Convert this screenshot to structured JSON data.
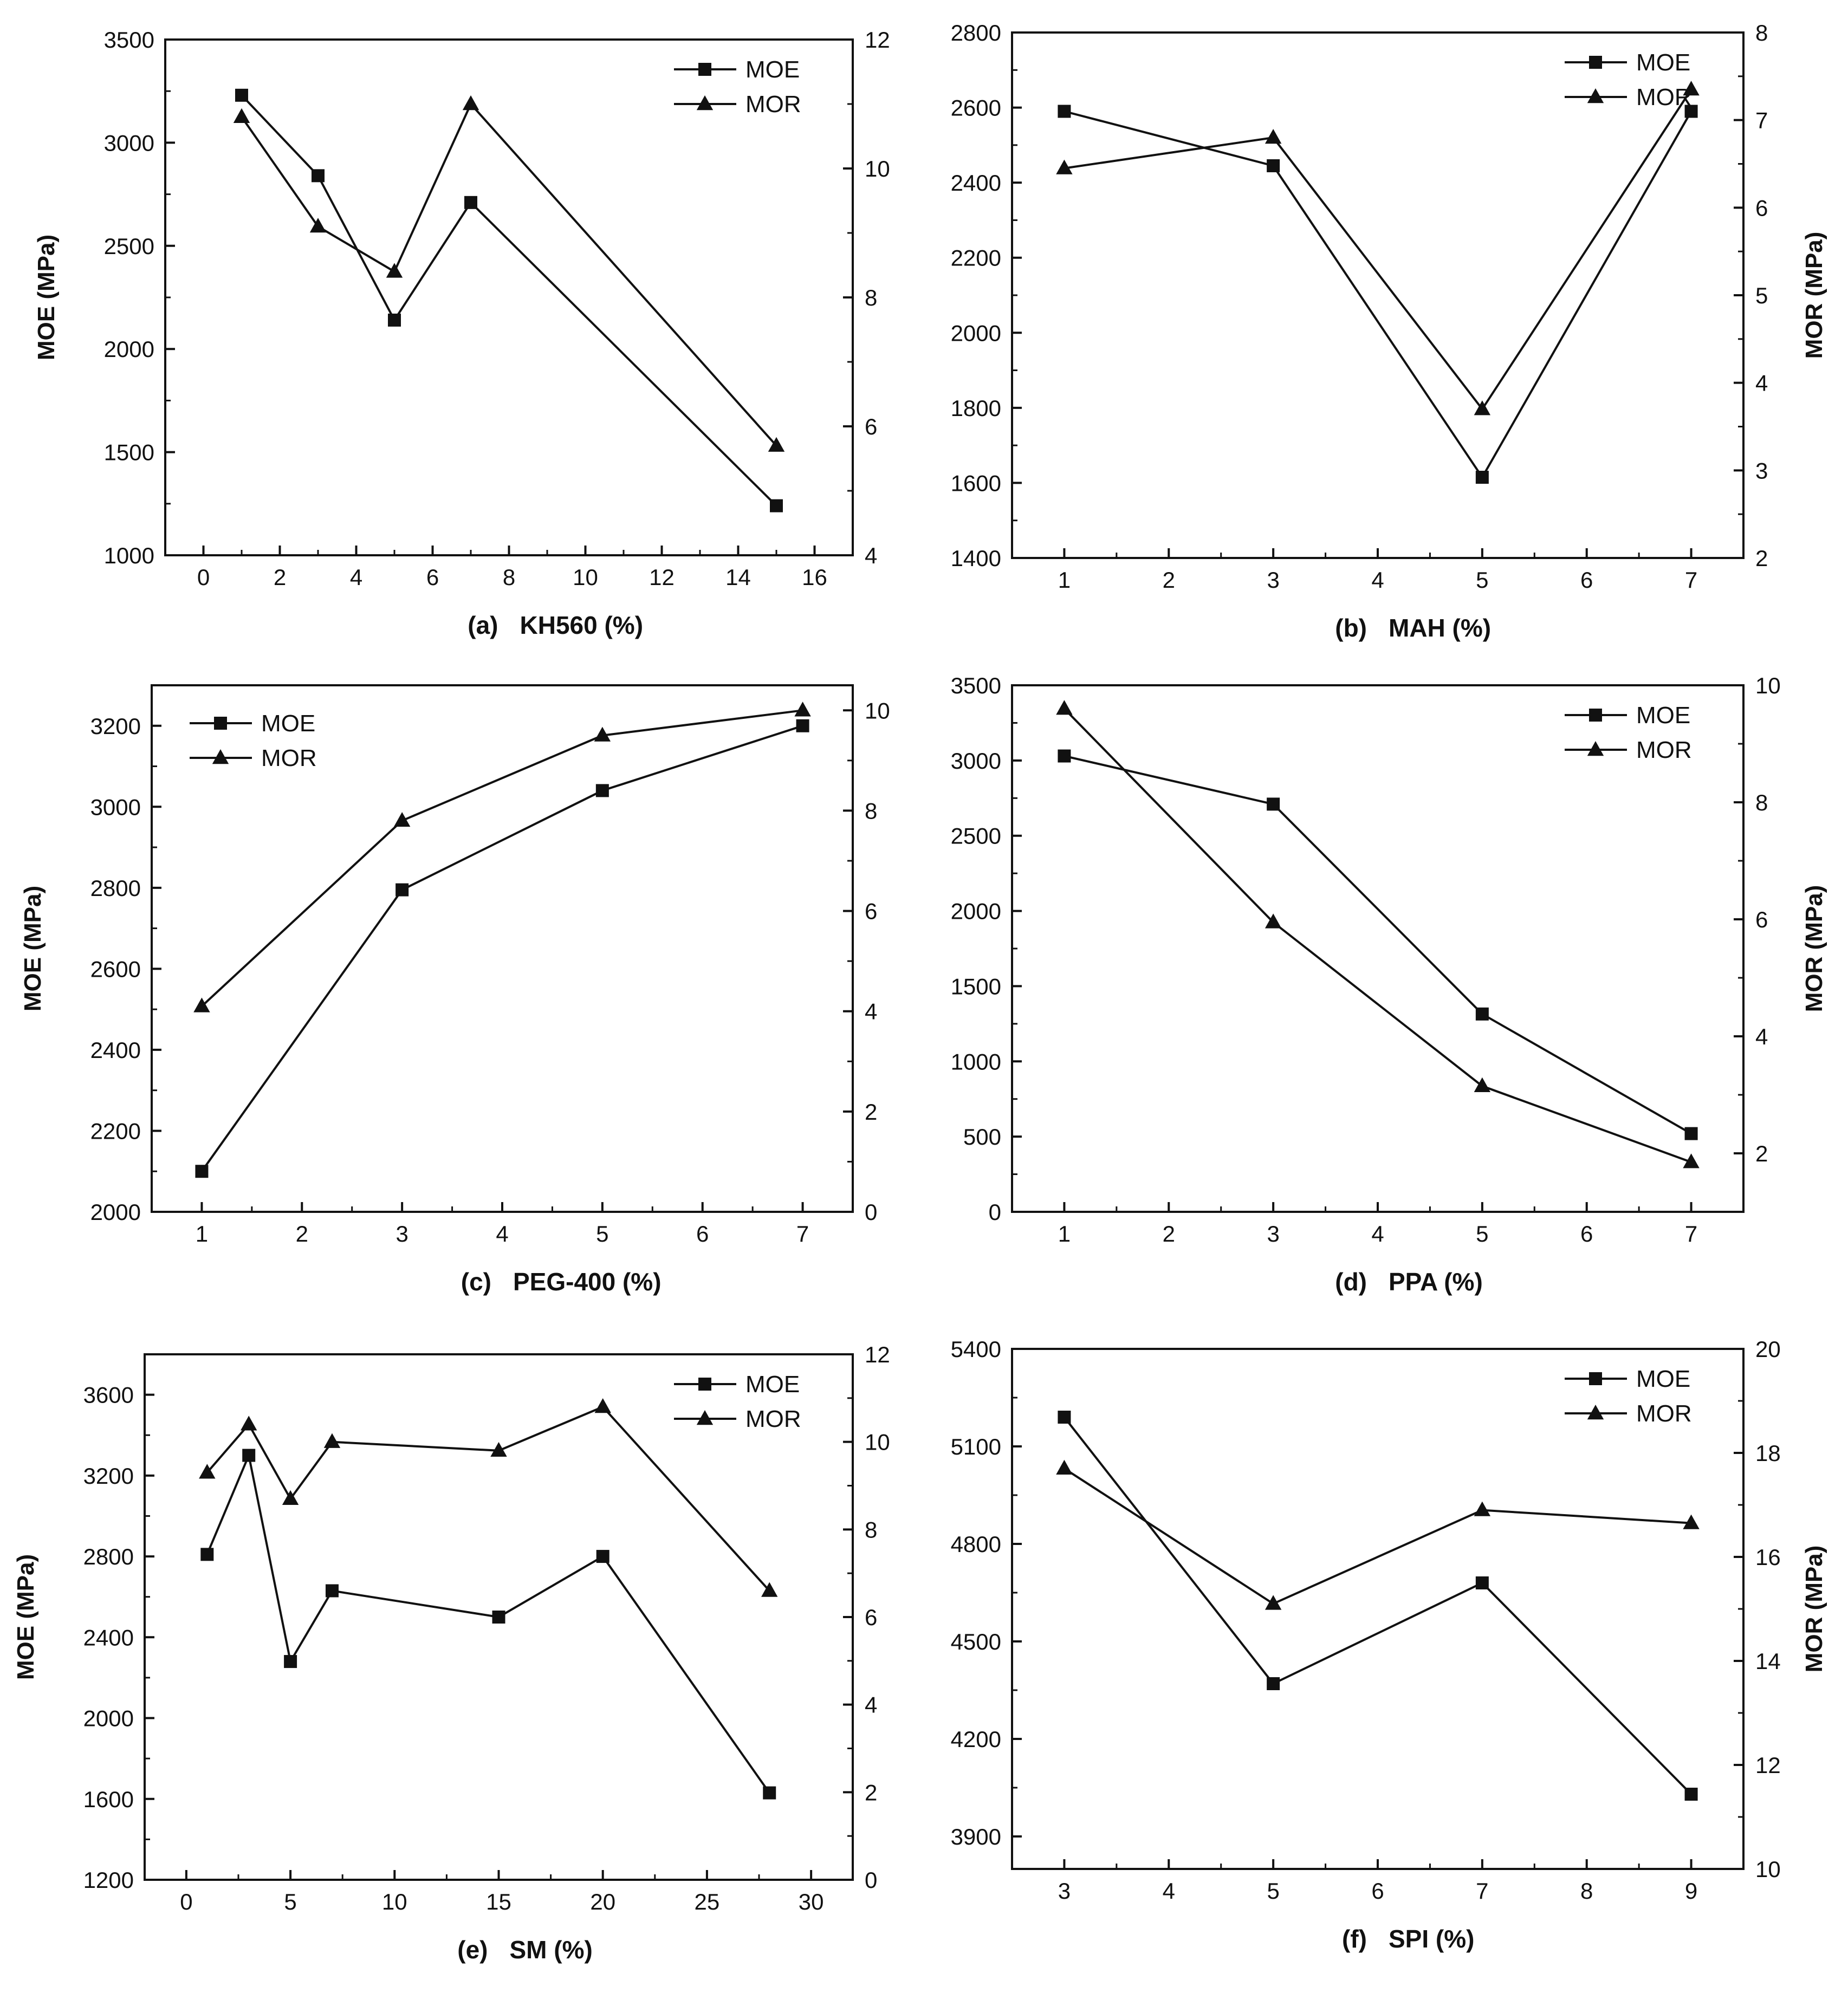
{
  "chart_data": [
    {
      "panel": "(a)",
      "type": "line",
      "xlabel": "KH560 (%)",
      "ylabel": "MOE (MPa)",
      "y2label": "",
      "xlim": [
        -1,
        17
      ],
      "xticks": [
        0,
        2,
        4,
        6,
        8,
        10,
        12,
        14,
        16
      ],
      "ylim": [
        1000,
        3500
      ],
      "yticks": [
        1000,
        1500,
        2000,
        2500,
        3000,
        3500
      ],
      "y2lim": [
        4,
        12
      ],
      "y2ticks": [
        4,
        6,
        8,
        10,
        12
      ],
      "legend": "top-right",
      "series": [
        {
          "name": "MOE",
          "axis": "left",
          "marker": "square",
          "x": [
            1,
            3,
            5,
            7,
            15
          ],
          "y": [
            3230,
            2840,
            2140,
            2710,
            1240
          ]
        },
        {
          "name": "MOR",
          "axis": "right",
          "marker": "triangle",
          "x": [
            1,
            3,
            5,
            7,
            15
          ],
          "y": [
            10.8,
            9.1,
            8.4,
            11.0,
            5.7
          ]
        }
      ]
    },
    {
      "panel": "(b)",
      "type": "line",
      "xlabel": "MAH (%)",
      "ylabel": "",
      "y2label": "MOR (MPa)",
      "xlim": [
        0.5,
        7.5
      ],
      "xticks": [
        1,
        2,
        3,
        4,
        5,
        6,
        7
      ],
      "ylim": [
        1400,
        2800
      ],
      "yticks": [
        1400,
        1600,
        1800,
        2000,
        2200,
        2400,
        2600,
        2800
      ],
      "y2lim": [
        2,
        8
      ],
      "y2ticks": [
        2,
        3,
        4,
        5,
        6,
        7,
        8
      ],
      "legend": "top-right",
      "series": [
        {
          "name": "MOE",
          "axis": "left",
          "marker": "square",
          "x": [
            1,
            3,
            5,
            7
          ],
          "y": [
            2590,
            2445,
            1615,
            2590
          ]
        },
        {
          "name": "MOR",
          "axis": "right",
          "marker": "triangle",
          "x": [
            1,
            3,
            5,
            7
          ],
          "y": [
            6.45,
            6.8,
            3.7,
            7.35
          ]
        }
      ]
    },
    {
      "panel": "(c)",
      "type": "line",
      "xlabel": "PEG-400 (%)",
      "ylabel": "MOE (MPa)",
      "y2label": "",
      "xlim": [
        0.5,
        7.5
      ],
      "xticks": [
        1,
        2,
        3,
        4,
        5,
        6,
        7
      ],
      "ylim": [
        2000,
        3300
      ],
      "yticks": [
        2000,
        2200,
        2400,
        2600,
        2800,
        3000,
        3200
      ],
      "y2lim": [
        0,
        10.5
      ],
      "y2ticks": [
        0,
        2,
        4,
        6,
        8,
        10
      ],
      "legend": "top-left",
      "series": [
        {
          "name": "MOE",
          "axis": "left",
          "marker": "square",
          "x": [
            1,
            3,
            5,
            7
          ],
          "y": [
            2100,
            2795,
            3040,
            3200
          ]
        },
        {
          "name": "MOR",
          "axis": "right",
          "marker": "triangle",
          "x": [
            1,
            3,
            5,
            7
          ],
          "y": [
            4.1,
            7.8,
            9.5,
            10.0
          ]
        }
      ]
    },
    {
      "panel": "(d)",
      "type": "line",
      "xlabel": "PPA (%)",
      "ylabel": "",
      "y2label": "MOR (MPa)",
      "xlim": [
        0.5,
        7.5
      ],
      "xticks": [
        1,
        2,
        3,
        4,
        5,
        6,
        7
      ],
      "ylim": [
        0,
        3500
      ],
      "yticks": [
        0,
        500,
        1000,
        1500,
        2000,
        2500,
        3000,
        3500
      ],
      "y2lim": [
        1,
        10
      ],
      "y2ticks": [
        2,
        4,
        6,
        8,
        10
      ],
      "legend": "top-right",
      "series": [
        {
          "name": "MOE",
          "axis": "left",
          "marker": "square",
          "x": [
            1,
            3,
            5,
            7
          ],
          "y": [
            3030,
            2710,
            1315,
            520
          ]
        },
        {
          "name": "MOR",
          "axis": "right",
          "marker": "triangle",
          "x": [
            1,
            3,
            5,
            7
          ],
          "y": [
            9.6,
            5.95,
            3.15,
            1.85
          ]
        }
      ]
    },
    {
      "panel": "(e)",
      "type": "line",
      "xlabel": "SM (%)",
      "ylabel": "MOE (MPa)",
      "y2label": "",
      "xlim": [
        -2,
        32
      ],
      "xticks": [
        0,
        5,
        10,
        15,
        20,
        25,
        30
      ],
      "ylim": [
        1200,
        3800
      ],
      "yticks": [
        1200,
        1600,
        2000,
        2400,
        2800,
        3200,
        3600
      ],
      "y2lim": [
        0,
        12
      ],
      "y2ticks": [
        0,
        2,
        4,
        6,
        8,
        10,
        12
      ],
      "legend": "top-right",
      "series": [
        {
          "name": "MOE",
          "axis": "left",
          "marker": "square",
          "x": [
            1,
            3,
            5,
            7,
            15,
            20,
            28
          ],
          "y": [
            2810,
            3300,
            2280,
            2630,
            2500,
            2800,
            1630
          ]
        },
        {
          "name": "MOR",
          "axis": "right",
          "marker": "triangle",
          "x": [
            1,
            3,
            5,
            7,
            15,
            20,
            28
          ],
          "y": [
            9.3,
            10.4,
            8.7,
            10.0,
            9.8,
            10.8,
            6.6
          ]
        }
      ]
    },
    {
      "panel": "(f)",
      "type": "line",
      "xlabel": "SPI (%)",
      "ylabel": "",
      "y2label": "MOR (MPa)",
      "xlim": [
        2.5,
        9.5
      ],
      "xticks": [
        3,
        4,
        5,
        6,
        7,
        8,
        9
      ],
      "ylim": [
        3800,
        5400
      ],
      "yticks": [
        3900,
        4200,
        4500,
        4800,
        5100,
        5400
      ],
      "y2lim": [
        10,
        20
      ],
      "y2ticks": [
        10,
        12,
        14,
        16,
        18,
        20
      ],
      "legend": "top-right",
      "series": [
        {
          "name": "MOE",
          "axis": "left",
          "marker": "square",
          "x": [
            3,
            5,
            7,
            9
          ],
          "y": [
            5190,
            4370,
            4680,
            4030
          ]
        },
        {
          "name": "MOR",
          "axis": "right",
          "marker": "triangle",
          "x": [
            3,
            5,
            7,
            9
          ],
          "y": [
            17.7,
            15.1,
            16.9,
            16.65
          ]
        }
      ]
    }
  ],
  "panel_captions": [
    {
      "letter": "(a)",
      "var": "KH560 (%)"
    },
    {
      "letter": "(b)",
      "var": "MAH (%)"
    },
    {
      "letter": "(c)",
      "var": "PEG-400 (%)"
    },
    {
      "letter": "(d)",
      "var": "PPA (%)"
    },
    {
      "letter": "(e)",
      "var": "SM (%)"
    },
    {
      "letter": "(f)",
      "var": "SPI (%)"
    }
  ],
  "colors": {
    "line": "#111111",
    "background": "#ffffff"
  }
}
